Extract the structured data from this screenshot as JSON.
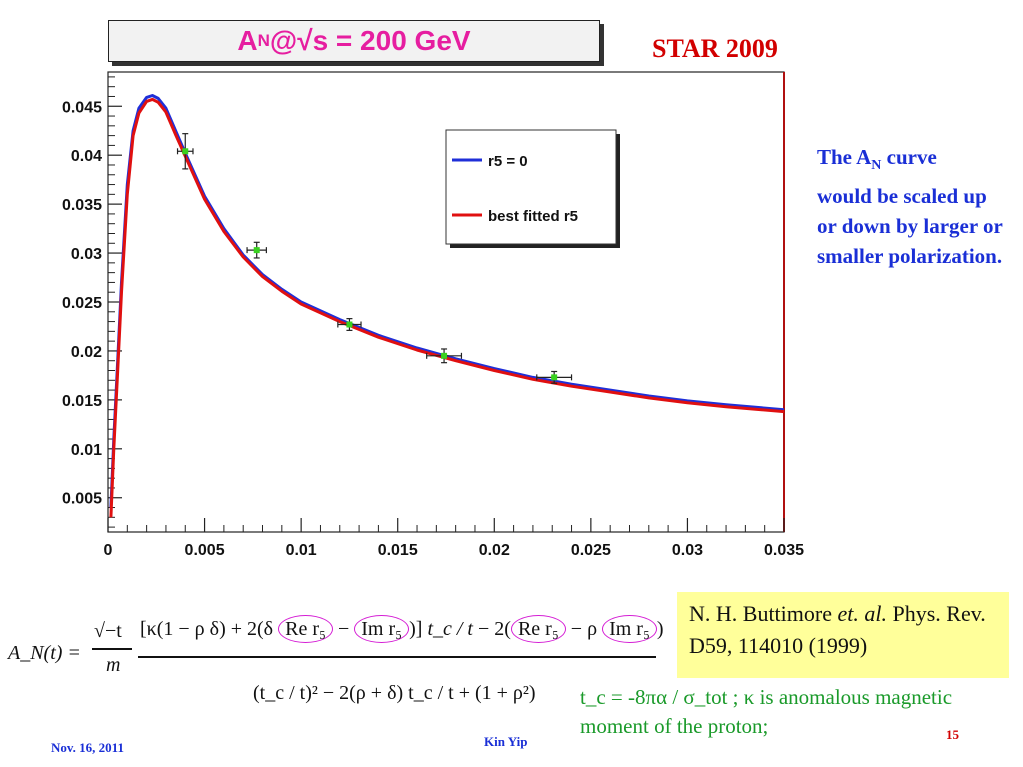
{
  "header": {
    "title_main": "A",
    "title_sub": "N",
    "title_rest": " @√s = 200 GeV",
    "star_label": "STAR 2009"
  },
  "chart_data": {
    "type": "line",
    "title": "",
    "xlabel": "",
    "ylabel": "",
    "xlim": [
      0,
      0.035
    ],
    "ylim": [
      0.0015,
      0.0485
    ],
    "x_ticks": [
      "0",
      "0.005",
      "0.01",
      "0.015",
      "0.02",
      "0.025",
      "0.03",
      "0.035"
    ],
    "x_tick_values": [
      0,
      0.005,
      0.01,
      0.015,
      0.02,
      0.025,
      0.03,
      0.035
    ],
    "y_ticks": [
      "0.005",
      "0.01",
      "0.015",
      "0.02",
      "0.025",
      "0.03",
      "0.035",
      "0.04",
      "0.045"
    ],
    "y_tick_values": [
      0.005,
      0.01,
      0.015,
      0.02,
      0.025,
      0.03,
      0.035,
      0.04,
      0.045
    ],
    "grid": false,
    "legend_position": "top-right",
    "series": [
      {
        "name": "r5 = 0",
        "color": "#1f2fd8",
        "x": [
          0.00015,
          0.0003,
          0.0005,
          0.0007,
          0.001,
          0.0013,
          0.0016,
          0.002,
          0.0023,
          0.0026,
          0.003,
          0.0035,
          0.004,
          0.005,
          0.006,
          0.007,
          0.008,
          0.009,
          0.01,
          0.012,
          0.014,
          0.016,
          0.018,
          0.02,
          0.022,
          0.024,
          0.026,
          0.028,
          0.03,
          0.032,
          0.035
        ],
        "y": [
          0.004,
          0.011,
          0.019,
          0.027,
          0.037,
          0.0425,
          0.0448,
          0.0459,
          0.0461,
          0.0458,
          0.0448,
          0.0425,
          0.0402,
          0.0358,
          0.0325,
          0.0298,
          0.0278,
          0.0263,
          0.025,
          0.0232,
          0.0216,
          0.0203,
          0.0192,
          0.0182,
          0.0173,
          0.0166,
          0.016,
          0.0154,
          0.0149,
          0.0145,
          0.014
        ]
      },
      {
        "name": "best fitted r5",
        "color": "#e01010",
        "x": [
          0.00015,
          0.0003,
          0.0005,
          0.0007,
          0.001,
          0.0013,
          0.0016,
          0.002,
          0.0023,
          0.0026,
          0.003,
          0.0035,
          0.004,
          0.005,
          0.006,
          0.007,
          0.008,
          0.009,
          0.01,
          0.012,
          0.014,
          0.016,
          0.018,
          0.02,
          0.022,
          0.024,
          0.026,
          0.028,
          0.03,
          0.032,
          0.035
        ],
        "y": [
          0.003,
          0.01,
          0.018,
          0.026,
          0.036,
          0.042,
          0.0443,
          0.0455,
          0.0457,
          0.0454,
          0.0444,
          0.0421,
          0.0399,
          0.0355,
          0.0322,
          0.0296,
          0.0276,
          0.0261,
          0.0248,
          0.023,
          0.0214,
          0.0201,
          0.019,
          0.018,
          0.0171,
          0.0164,
          0.0158,
          0.0152,
          0.0147,
          0.0143,
          0.0138
        ]
      }
    ],
    "data_points": {
      "color": "#39d11f",
      "x": [
        0.004,
        0.0077,
        0.0125,
        0.0174,
        0.0231
      ],
      "y": [
        0.0404,
        0.0303,
        0.0227,
        0.0195,
        0.0173
      ],
      "y_err": [
        0.0018,
        0.0008,
        0.0006,
        0.0007,
        0.0006
      ],
      "x_err": [
        0.0004,
        0.0005,
        0.0006,
        0.0009,
        0.0009
      ]
    }
  },
  "side_note": {
    "line1_pre": "The A",
    "line1_sub": "N",
    "line1_post": " curve",
    "rest": "would be scaled up or down by larger or smaller polarization."
  },
  "reference": {
    "authors": "N. H. Buttimore",
    "etal": "et. al.",
    "journal": "Phys. Rev. D59, 114010 (1999)"
  },
  "definitions": {
    "text": "t_c = -8πα / σ_tot ;  κ  is  anomalous magnetic moment of the proton;"
  },
  "formula": {
    "lhs": "A_N(t) =",
    "prefactor_num": "√−t",
    "prefactor_den": "m",
    "numerator_a": "[κ(1 − ρ δ) + 2(δ",
    "re_r5": "Re r₅",
    "minus": "−",
    "im_r5": "Im r₅",
    "numerator_b": ")]",
    "tc_over_t": "t_c / t",
    "numerator_c": "− 2(",
    "numerator_d": "− ρ",
    "numerator_e": ")",
    "denominator": "(t_c / t)² − 2(ρ + δ) t_c / t + (1 + ρ²)"
  },
  "footer": {
    "date": "Nov. 16, 2011",
    "author": "Kin Yip",
    "page": "15"
  }
}
